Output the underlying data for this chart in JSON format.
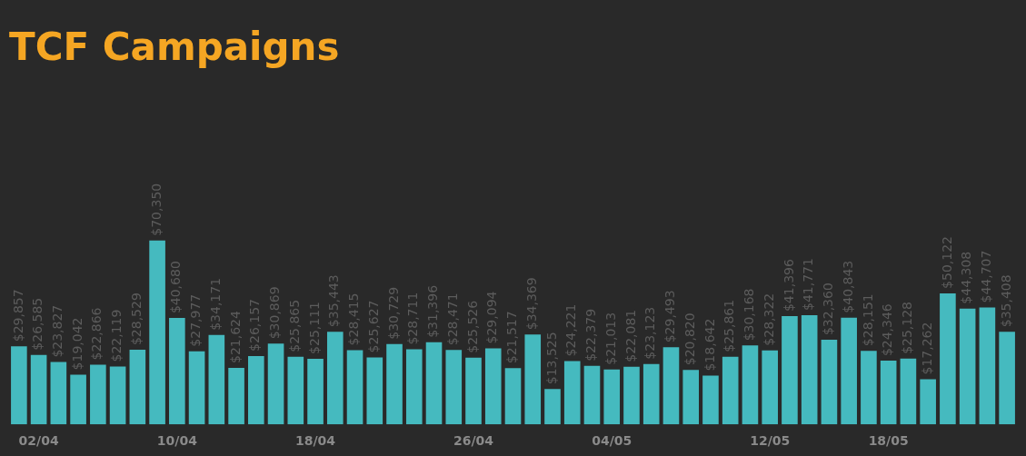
{
  "chart_data": {
    "type": "bar",
    "title": "TCF Campaigns",
    "categories": [
      null,
      "02/04",
      null,
      null,
      null,
      null,
      null,
      null,
      "10/04",
      null,
      null,
      null,
      null,
      null,
      null,
      "18/04",
      null,
      null,
      null,
      null,
      null,
      null,
      null,
      "26/04",
      null,
      null,
      null,
      null,
      null,
      null,
      "04/05",
      null,
      null,
      null,
      null,
      null,
      null,
      null,
      "12/05",
      null,
      null,
      null,
      null,
      null,
      "18/05",
      null,
      null,
      null,
      null,
      null,
      null
    ],
    "values": [
      29857,
      26585,
      23827,
      19042,
      22866,
      22119,
      28529,
      70350,
      40680,
      27977,
      34171,
      21624,
      26157,
      30869,
      25865,
      25111,
      35443,
      28415,
      25627,
      30729,
      28711,
      31396,
      28471,
      25526,
      29094,
      21517,
      34369,
      13525,
      24221,
      22379,
      21013,
      22081,
      23123,
      29493,
      20820,
      18642,
      25861,
      30168,
      28322,
      41396,
      41771,
      32360,
      40843,
      28151,
      24346,
      25128,
      17262,
      50122,
      44308,
      44707,
      35408
    ],
    "value_labels": [
      "$29,857",
      "$26,585",
      "$23,827",
      "$19,042",
      "$22,866",
      "$22,119",
      "$28,529",
      "$70,350",
      "$40,680",
      "$27,977",
      "$34,171",
      "$21,624",
      "$26,157",
      "$30,869",
      "$25,865",
      "$25,111",
      "$35,443",
      "$28,415",
      "$25,627",
      "$30,729",
      "$28,711",
      "$31,396",
      "$28,471",
      "$25,526",
      "$29,094",
      "$21,517",
      "$34,369",
      "$13,525",
      "$24,221",
      "$22,379",
      "$21,013",
      "$22,081",
      "$23,123",
      "$29,493",
      "$20,820",
      "$18,642",
      "$25,861",
      "$30,168",
      "$28,322",
      "$41,396",
      "$41,771",
      "$32,360",
      "$40,843",
      "$28,151",
      "$24,346",
      "$25,128",
      "$17,262",
      "$50,122",
      "$44,308",
      "$44,707",
      "$35,408"
    ],
    "color": "#45babf",
    "tick_labels": "x"
  }
}
